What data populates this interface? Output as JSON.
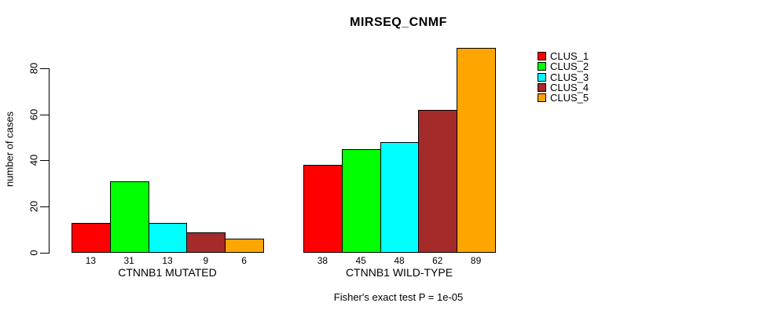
{
  "chart_data": {
    "type": "bar",
    "title": "MIRSEQ_CNMF",
    "ylabel": "number of cases",
    "xlabel": "",
    "yticks": [
      0,
      20,
      40,
      60,
      80
    ],
    "ylim": [
      0,
      89
    ],
    "grid": false,
    "legend_position": "right-outside-top",
    "series_names": [
      "CLUS_1",
      "CLUS_2",
      "CLUS_3",
      "CLUS_4",
      "CLUS_5"
    ],
    "series_colors": [
      "#FF0000",
      "#00FF00",
      "#00FFFF",
      "#A52A2A",
      "#FFA500"
    ],
    "groups": [
      {
        "label": "CTNNB1 MUTATED",
        "values": [
          13,
          31,
          13,
          9,
          6
        ]
      },
      {
        "label": "CTNNB1 WILD-TYPE",
        "values": [
          38,
          45,
          48,
          62,
          89
        ]
      }
    ],
    "bar_value_labels": true,
    "annotation": "Fisher's exact test P = 1e-05"
  }
}
